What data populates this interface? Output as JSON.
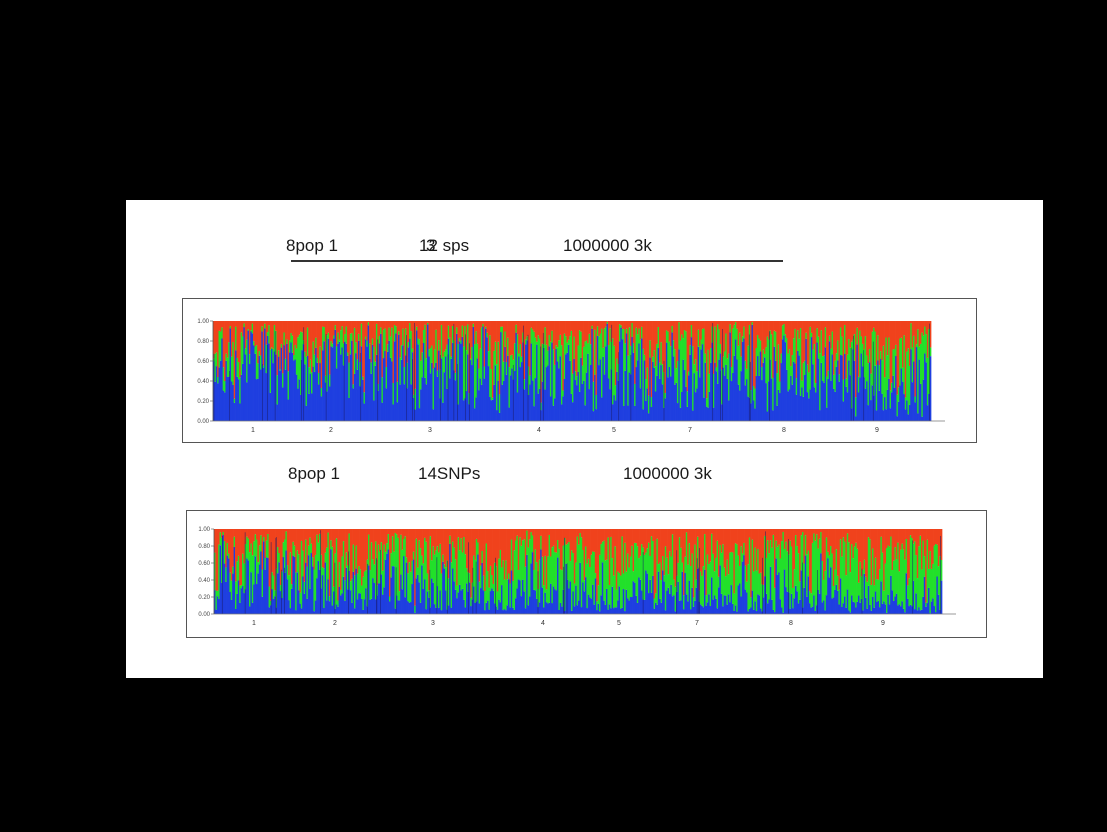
{
  "figure": {
    "top_caption": {
      "part1": "8pop 1",
      "part2": "12 sps",
      "part2_overprint": "3",
      "part3": "1000000 3k"
    },
    "bottom_caption": {
      "part1": "8pop 1",
      "part2": "14SNPs",
      "part3": "1000000 3k"
    }
  },
  "chart_data": [
    {
      "type": "bar",
      "stacked": true,
      "ylim": [
        0,
        1
      ],
      "yticks": [
        "1.00",
        "0.80",
        "0.60",
        "0.40",
        "0.20",
        "0.00"
      ],
      "population_labels": [
        "1",
        "2",
        "3",
        "4",
        "5",
        "7",
        "8",
        "9"
      ],
      "series": [
        {
          "color": "#1f3fe0",
          "mean_share": 0.55
        },
        {
          "color": "#22e02a",
          "mean_share": 0.22
        },
        {
          "color": "#f0421c",
          "mean_share": 0.23
        }
      ],
      "grid": false
    },
    {
      "type": "bar",
      "stacked": true,
      "ylim": [
        0,
        1
      ],
      "yticks": [
        "1.00",
        "0.80",
        "0.60",
        "0.40",
        "0.20",
        "0.00"
      ],
      "population_labels": [
        "1",
        "2",
        "3",
        "4",
        "5",
        "7",
        "8",
        "9"
      ],
      "series": [
        {
          "color": "#1f3fe0",
          "mean_share": 0.25
        },
        {
          "color": "#22e02a",
          "mean_share": 0.42
        },
        {
          "color": "#f0421c",
          "mean_share": 0.33
        }
      ],
      "grid": false
    }
  ]
}
